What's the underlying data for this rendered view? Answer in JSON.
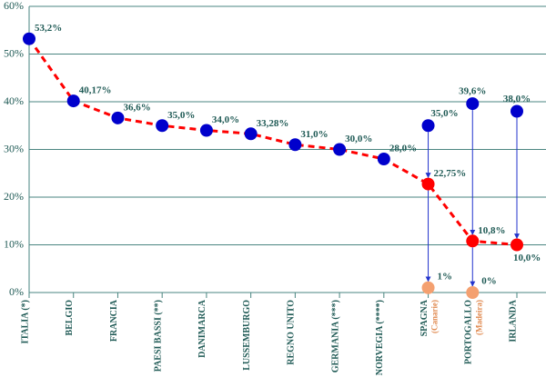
{
  "chart_data": {
    "type": "line",
    "categories": [
      "ITALIA (*)",
      "BELGIO",
      "FRANCIA",
      "PAESI BASSI (**)",
      "DANIMARCA",
      "LUSSEMBURGO",
      "REGNO UNITO",
      "GERMANIA (***)",
      "NORVEGIA (****)",
      "SPAGNA",
      "PORTOGALLO",
      "IRLANDA"
    ],
    "category_notes": [
      null,
      null,
      null,
      null,
      null,
      null,
      null,
      null,
      null,
      "(Canarie)",
      "(Madeira)",
      null
    ],
    "series": [
      {
        "color": "#ff0000",
        "point_colors": [
          "#0000cc",
          "#0000cc",
          "#0000cc",
          "#0000cc",
          "#0000cc",
          "#0000cc",
          "#0000cc",
          "#0000cc",
          "#0000cc",
          "#ff0000",
          "#ff0000",
          "#ff0000"
        ],
        "values": [
          53.2,
          40.17,
          36.6,
          35.0,
          34.0,
          33.28,
          31.0,
          30.0,
          28.0,
          22.75,
          10.8,
          10.0
        ],
        "value_labels": [
          "53,2%",
          "40,17%",
          "36,6%",
          "35,0%",
          "34,0%",
          "33,28%",
          "31,0%",
          "30,0%",
          "28,0%",
          "22,75%",
          "10,8%",
          "10,0%"
        ]
      },
      {
        "color": "#0000cc",
        "values": [
          null,
          null,
          null,
          null,
          null,
          null,
          null,
          null,
          null,
          35.0,
          39.6,
          38.0
        ],
        "value_labels": [
          null,
          null,
          null,
          null,
          null,
          null,
          null,
          null,
          null,
          "35,0%",
          "39,6%",
          "38,0%"
        ]
      },
      {
        "color": "#f4a070",
        "values": [
          null,
          null,
          null,
          null,
          null,
          null,
          null,
          null,
          null,
          1,
          0,
          null
        ],
        "value_labels": [
          null,
          null,
          null,
          null,
          null,
          null,
          null,
          null,
          null,
          "1%",
          "0%",
          null
        ]
      }
    ],
    "ylim": [
      0,
      60
    ],
    "yticks": [
      {
        "value": 0,
        "label": "0%"
      },
      {
        "value": 10,
        "label": "10%"
      },
      {
        "value": 20,
        "label": "20%"
      },
      {
        "value": 30,
        "label": "30%"
      },
      {
        "value": 40,
        "label": "40%"
      },
      {
        "value": 50,
        "label": "50%"
      },
      {
        "value": 60,
        "label": "60%"
      }
    ],
    "grid": true
  }
}
